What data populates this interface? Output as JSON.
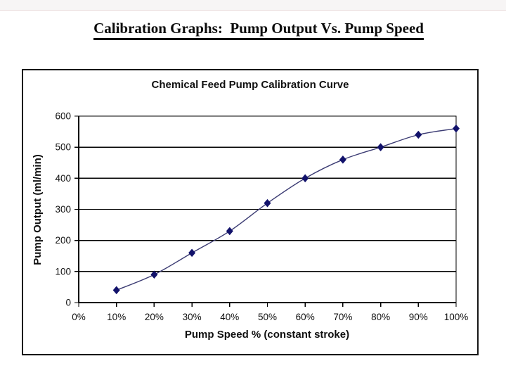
{
  "page": {
    "title": "Calibration Graphs:  Pump Output Vs. Pump Speed"
  },
  "chart": {
    "title": "Chemical Feed Pump Calibration Curve",
    "x_axis_title": "Pump Speed % (constant stroke)",
    "y_axis_title": "Pump Output (ml/min)"
  },
  "chart_data": {
    "type": "line",
    "title": "Chemical Feed Pump Calibration Curve",
    "xlabel": "Pump Speed % (constant stroke)",
    "ylabel": "Pump Output (ml/min)",
    "x_tick_labels": [
      "0%",
      "10%",
      "20%",
      "30%",
      "40%",
      "50%",
      "60%",
      "70%",
      "80%",
      "90%",
      "100%"
    ],
    "series": [
      {
        "name": "Pump Output (ml/min)",
        "x_percent": [
          10,
          20,
          30,
          40,
          50,
          60,
          70,
          80,
          90,
          100
        ],
        "values": [
          40,
          90,
          160,
          230,
          320,
          400,
          460,
          500,
          540,
          560
        ]
      }
    ],
    "xlim_percent": [
      0,
      100
    ],
    "ylim": [
      0,
      600
    ],
    "y_ticks": [
      0,
      100,
      200,
      300,
      400,
      500,
      600
    ],
    "grid": "horizontal",
    "legend": "none",
    "marker": "diamond",
    "line_smooth": true,
    "colors": {
      "line": "#3b3b73",
      "marker": "#12126b",
      "grid": "#000000",
      "axis": "#000000"
    }
  }
}
